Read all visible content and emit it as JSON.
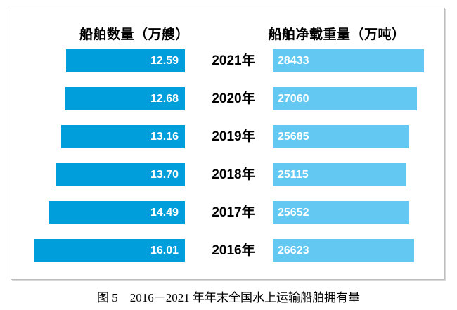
{
  "caption": "图 5　2016－2021 年年末全国水上运输船舶拥有量",
  "chart_data": {
    "type": "bar",
    "subtype": "butterfly-tornado",
    "title": "图 5　2016－2021 年年末全国水上运输船舶拥有量",
    "left_series_title": "船舶数量（万艘）",
    "right_series_title": "船舶净载重量（万吨）",
    "categories": [
      "2021年",
      "2020年",
      "2019年",
      "2018年",
      "2017年",
      "2016年"
    ],
    "series": [
      {
        "name": "船舶数量（万艘）",
        "direction": "left",
        "color": "#009FDB",
        "values": [
          12.59,
          12.68,
          13.16,
          13.7,
          14.49,
          16.01
        ],
        "labels": [
          "12.59",
          "12.68",
          "13.16",
          "13.70",
          "14.49",
          "16.01"
        ]
      },
      {
        "name": "船舶净载重量（万吨）",
        "direction": "right",
        "color": "#63C9F2",
        "values": [
          28433,
          27060,
          25685,
          25115,
          25652,
          26623
        ],
        "labels": [
          "28433",
          "27060",
          "25685",
          "25115",
          "25652",
          "26623"
        ]
      }
    ],
    "value_label_color": "#ffffff",
    "value_labels_visible": true,
    "axes_visible": false,
    "gridlines_visible": false,
    "legend_position": "column-headers"
  }
}
